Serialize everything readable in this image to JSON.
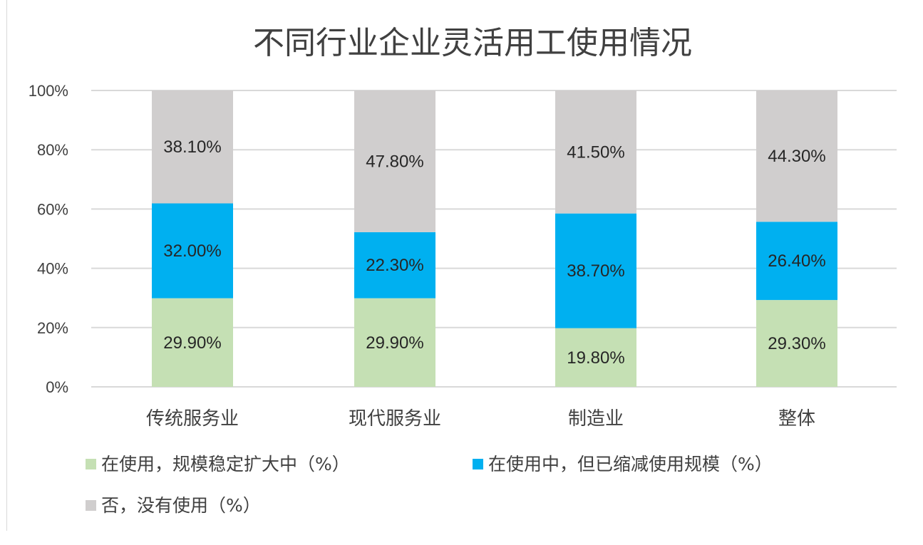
{
  "chart_data": {
    "type": "bar",
    "stacked": true,
    "title": "不同行业企业灵活用工使用情况",
    "categories": [
      "传统服务业",
      "现代服务业",
      "制造业",
      "整体"
    ],
    "y_ticks": [
      "0%",
      "20%",
      "40%",
      "60%",
      "80%",
      "100%"
    ],
    "ylim": [
      0,
      100
    ],
    "grid": true,
    "legend_position": "bottom",
    "series": [
      {
        "name": "在使用，规模稳定扩大中（%）",
        "values": [
          29.9,
          29.9,
          19.8,
          29.3
        ],
        "labels": [
          "29.90%",
          "29.90%",
          "19.80%",
          "29.30%"
        ],
        "color": "#c5e0b4"
      },
      {
        "name": "在使用中，但已缩减使用规模（%）",
        "values": [
          32.0,
          22.3,
          38.7,
          26.4
        ],
        "labels": [
          "32.00%",
          "22.30%",
          "38.70%",
          "26.40%"
        ],
        "color": "#00b0f0"
      },
      {
        "name": "否，没有使用（%）",
        "values": [
          38.1,
          47.8,
          41.5,
          44.3
        ],
        "labels": [
          "38.10%",
          "47.80%",
          "41.50%",
          "44.30%"
        ],
        "color": "#d0cece"
      }
    ]
  }
}
